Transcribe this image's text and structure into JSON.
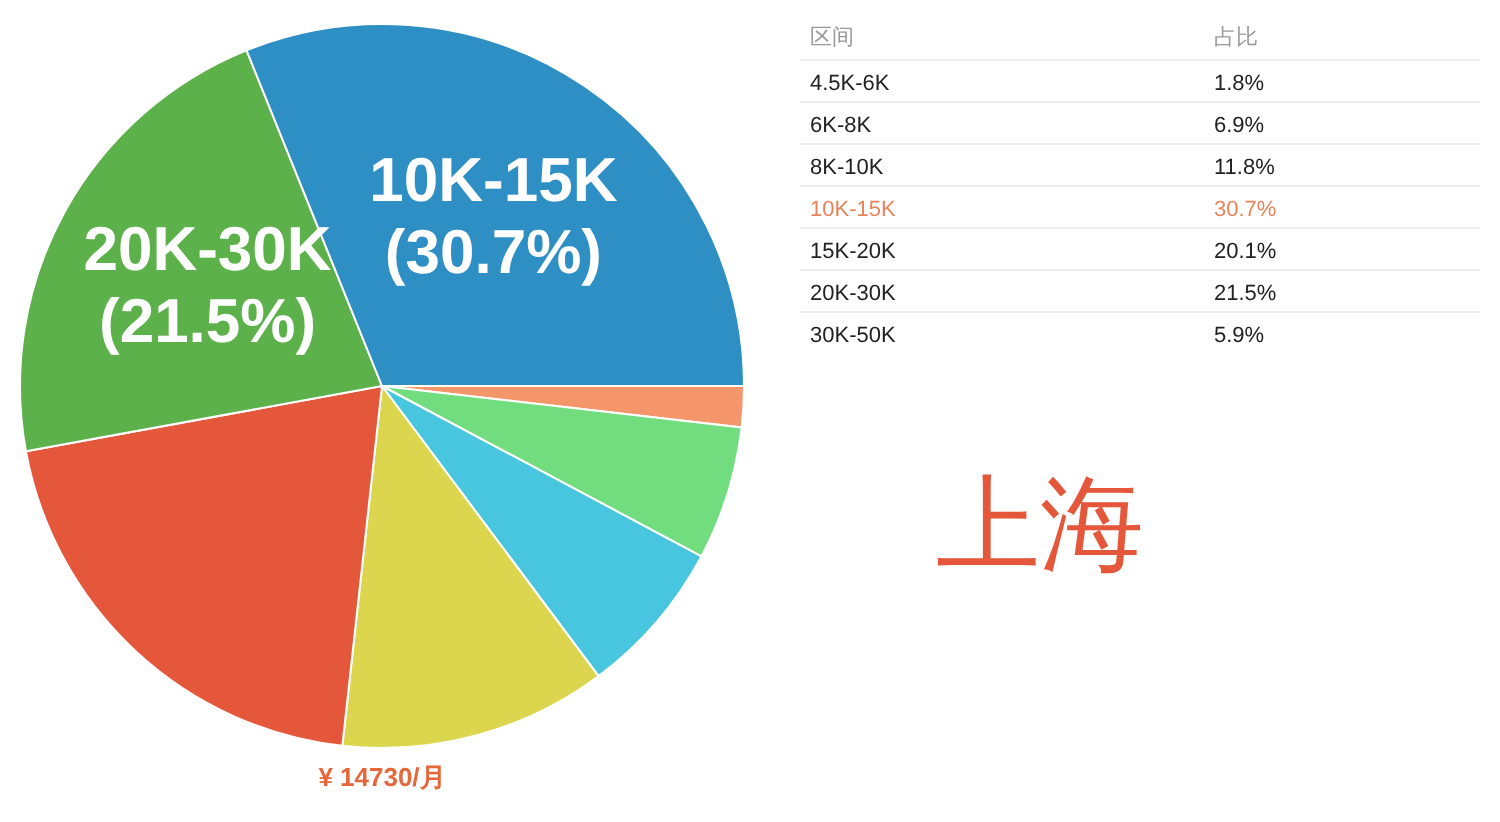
{
  "chart_data": [
    {
      "type": "pie",
      "categories": [
        null,
        null,
        null,
        null,
        null,
        "20K-30K",
        "10K-15K"
      ],
      "values": [
        1.8,
        5.9,
        6.9,
        11.8,
        20.1,
        21.5,
        30.7
      ],
      "colors": [
        "#f4956a",
        "#72dd7e",
        "#48c6df",
        "#dcd64e",
        "#e5573a",
        "#5db14a",
        "#2d8fc4"
      ],
      "value_labels": [
        null,
        null,
        null,
        null,
        null,
        "(21.5%)",
        "(30.7%)"
      ],
      "annotations": [
        "¥ 14730/月"
      ]
    },
    {
      "type": "other",
      "title": "上海",
      "xlabel": "区间",
      "ylabel": "占比",
      "categories": [
        "4.5K-6K",
        "6K-8K",
        "8K-10K",
        "10K-15K",
        "15K-20K",
        "20K-30K",
        "30K-50K"
      ],
      "values": [
        1.8,
        6.9,
        11.8,
        30.7,
        20.1,
        21.5,
        5.9
      ],
      "value_labels": [
        "1.8%",
        "6.9%",
        "11.8%",
        "30.7%",
        "20.1%",
        "21.5%",
        "5.9%"
      ]
    }
  ]
}
